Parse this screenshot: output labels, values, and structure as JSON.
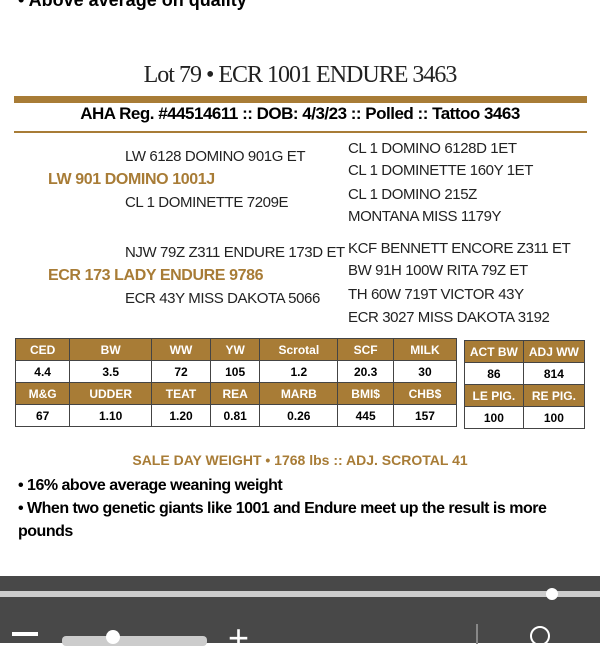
{
  "top_bullet": "• Above average on quality",
  "title": "Lot 79 • ECR 1001 ENDURE 3463",
  "reg_line": "AHA Reg. #44514611 :: DOB: 4/3/23 :: Polled :: Tattoo 3463",
  "pedigree": {
    "sire": "LW 901 DOMINO 1001J",
    "sire_sire": "LW 6128 DOMINO 901G ET",
    "sire_dam": "CL 1 DOMINETTE 7209E",
    "ss_sire": "CL 1 DOMINO 6128D 1ET",
    "ss_dam": "CL 1 DOMINETTE 160Y 1ET",
    "sd_sire": "CL 1 DOMINO 215Z",
    "sd_dam": "MONTANA MISS 1179Y",
    "dam": "ECR 173 LADY ENDURE 9786",
    "dam_sire": "NJW 79Z Z311 ENDURE 173D ET",
    "dam_dam": "ECR 43Y MISS DAKOTA 5066",
    "ds_sire": "KCF BENNETT ENCORE Z311 ET",
    "ds_dam": "BW 91H 100W RITA 79Z ET",
    "dd_sire": "TH 60W 719T VICTOR 43Y",
    "dd_dam": "ECR 3027 MISS DAKOTA 3192"
  },
  "epd": {
    "row1_headers": [
      "CED",
      "BW",
      "WW",
      "YW",
      "Scrotal",
      "SCF",
      "MILK"
    ],
    "row1_values": [
      "4.4",
      "3.5",
      "72",
      "105",
      "1.2",
      "20.3",
      "30"
    ],
    "row2_headers": [
      "M&G",
      "UDDER",
      "TEAT",
      "REA",
      "MARB",
      "BMI$",
      "CHB$"
    ],
    "row2_values": [
      "67",
      "1.10",
      "1.20",
      "0.81",
      "0.26",
      "445",
      "157"
    ]
  },
  "side": {
    "row1_headers": [
      "ACT BW",
      "ADJ WW"
    ],
    "row1_values": [
      "86",
      "814"
    ],
    "row2_headers": [
      "LE PIG.",
      "RE PIG."
    ],
    "row2_values": [
      "100",
      "100"
    ]
  },
  "sale_line": "SALE DAY WEIGHT • 1768 lbs :: ADJ. SCROTAL 41",
  "bullets": [
    "• 16% above average weaning weight",
    "• When two genetic giants like 1001 and Endure meet up the result is more pounds"
  ],
  "viewer": {
    "scroll_progress": 0.92,
    "zoom_minus": "−",
    "zoom_plus": "+"
  },
  "colors": {
    "gold": "#a87c36",
    "toolbar": "#484848"
  }
}
